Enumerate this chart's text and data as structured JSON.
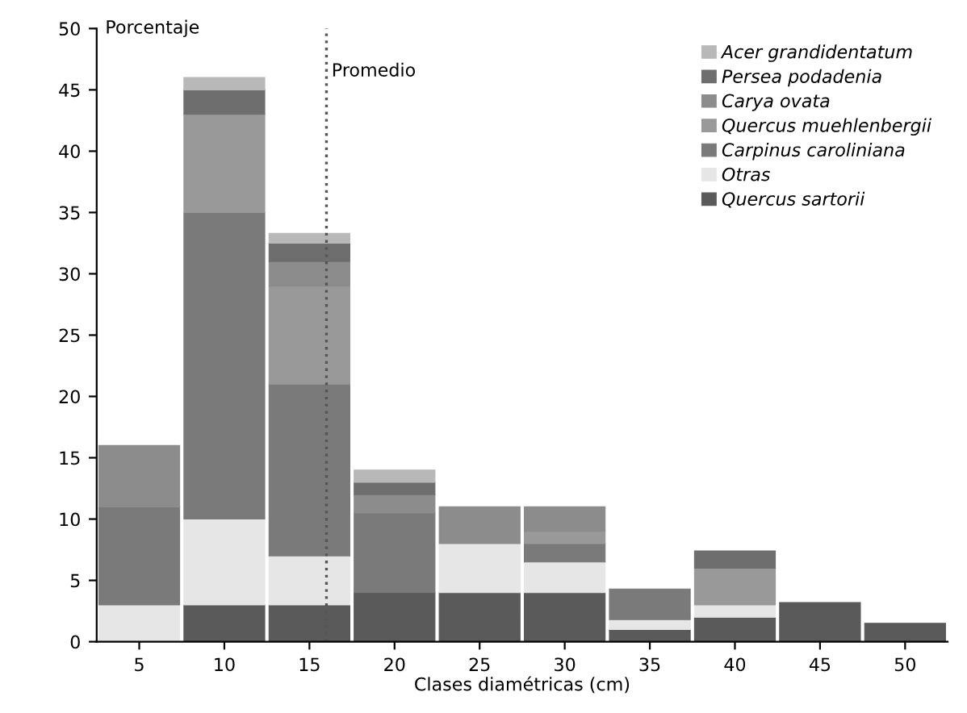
{
  "chart_data": {
    "type": "bar",
    "stacked": true,
    "ylabel": "Porcentaje",
    "xlabel": "Clases diamétricas (cm)",
    "x": [
      5,
      10,
      15,
      20,
      25,
      30,
      35,
      40,
      45,
      50
    ],
    "series": [
      {
        "name": "Quercus sartorii",
        "color": "#5a5a5a",
        "values": [
          null,
          3,
          3,
          4,
          4,
          4,
          1,
          2,
          3.2,
          1.5
        ]
      },
      {
        "name": "Otras",
        "color": "#e6e6e6",
        "values": [
          3,
          7,
          4,
          null,
          4,
          2.5,
          0.8,
          1,
          null,
          null
        ]
      },
      {
        "name": "Carpinus caroliniana",
        "color": "#7a7a7a",
        "values": [
          8,
          25,
          14,
          6.5,
          null,
          1.5,
          2.5,
          null,
          null,
          null
        ]
      },
      {
        "name": "Quercus muehlenbergii",
        "color": "#999999",
        "values": [
          null,
          8,
          8,
          null,
          null,
          1,
          null,
          3,
          null,
          null
        ]
      },
      {
        "name": "Carya ovata",
        "color": "#8c8c8c",
        "values": [
          5,
          null,
          2,
          1.5,
          3,
          2,
          null,
          null,
          null,
          null
        ]
      },
      {
        "name": "Persea podadenia",
        "color": "#6e6e6e",
        "values": [
          null,
          2,
          1.5,
          1,
          null,
          null,
          null,
          1.4,
          null,
          null
        ]
      },
      {
        "name": "Acer grandidentatum",
        "color": "#b8b8b8",
        "values": [
          null,
          1,
          0.8,
          1,
          null,
          null,
          null,
          null,
          null,
          null
        ]
      }
    ],
    "xlim": [
      2.5,
      52.5
    ],
    "xticks": [
      5,
      10,
      15,
      20,
      25,
      30,
      35,
      40,
      45,
      50
    ],
    "ylim": [
      0,
      50
    ],
    "yticks": [
      0,
      5,
      10,
      15,
      20,
      25,
      30,
      35,
      40,
      45,
      50
    ],
    "ref_lines": [
      {
        "axis": "x",
        "value": 16,
        "label": "Promedio",
        "line_style": "dotted",
        "color": "#555555"
      }
    ],
    "legend": "top right",
    "grid": false
  }
}
